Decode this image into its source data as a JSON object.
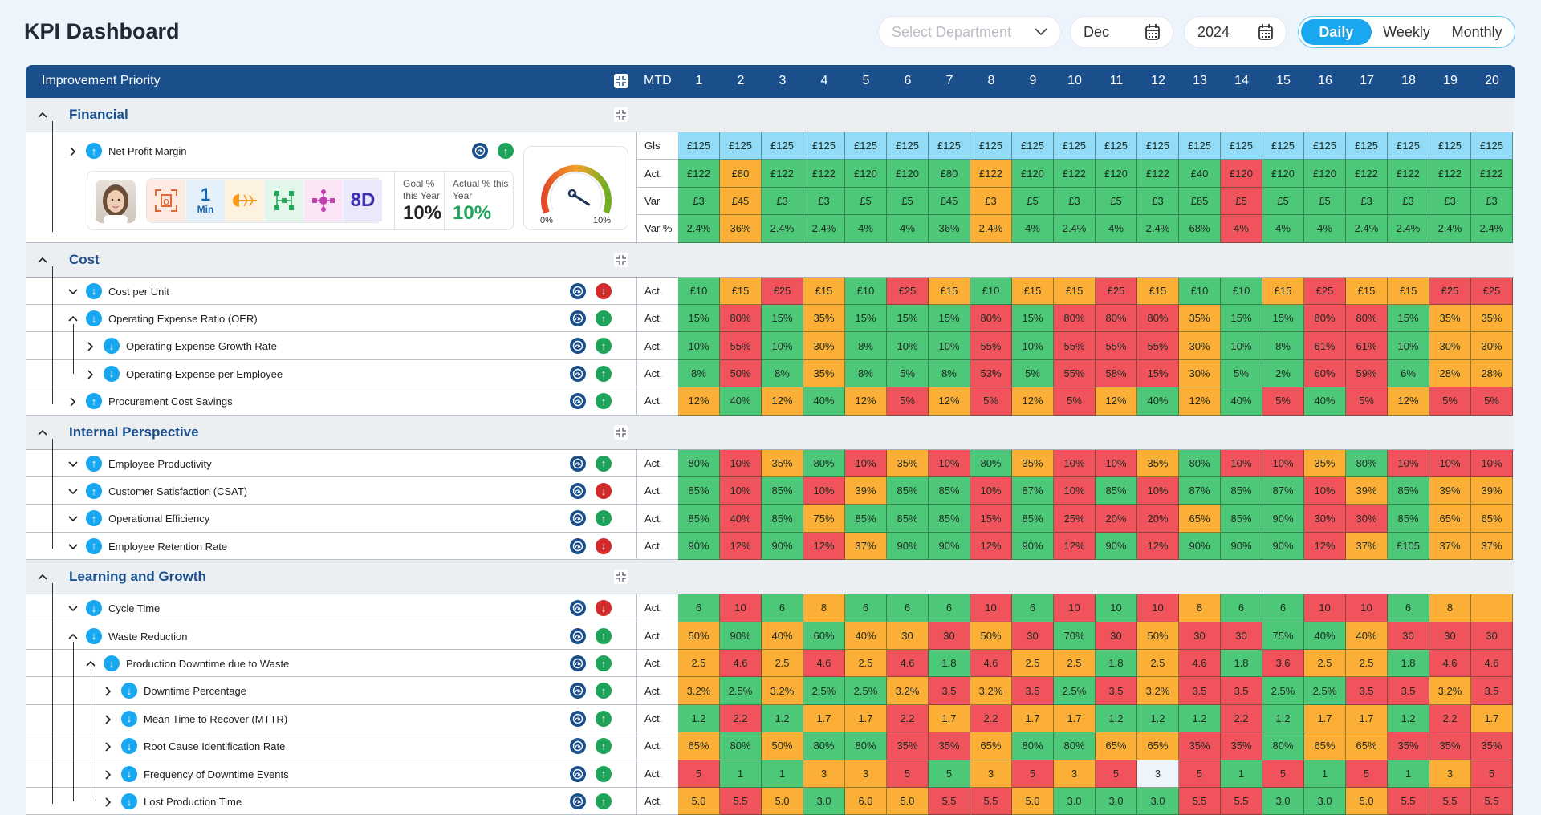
{
  "header": {
    "title": "KPI Dashboard",
    "department_placeholder": "Select Department",
    "month": "Dec",
    "year": "2024",
    "views": [
      "Daily",
      "Weekly",
      "Monthly"
    ],
    "active_view": "Daily"
  },
  "table": {
    "priority_label": "Improvement Priority",
    "mtd_label": "MTD",
    "days": [
      "1",
      "2",
      "3",
      "4",
      "5",
      "6",
      "7",
      "8",
      "9",
      "10",
      "11",
      "12",
      "13",
      "14",
      "15",
      "16",
      "17",
      "18",
      "19",
      "20"
    ]
  },
  "colors": {
    "g": "#4dc878",
    "o": "#fbaf36",
    "r": "#f0535c",
    "b": "#92dcf8",
    "brand": "#1a4f8b",
    "accent": "#19a7ef"
  },
  "financial_card": {
    "tools": [
      "Q",
      "1",
      "Min",
      "fishbone",
      "network",
      "process",
      "8D"
    ],
    "goal_label": "Goal % this Year",
    "goal_value": "10%",
    "actual_label": "Actual % this Year",
    "actual_value": "10%",
    "gauge": {
      "min_label": "0%",
      "max_label": "10%",
      "value": 10,
      "max": 10
    }
  },
  "sections": [
    {
      "title": "Financial",
      "rows": [
        {
          "name": "Net Profit Margin",
          "level": 0,
          "expander": "collapsed",
          "direction": "up",
          "trend": "up",
          "card": true,
          "metrics": [
            {
              "label": "Gls",
              "values": [
                "£125",
                "£125",
                "£125",
                "£125",
                "£125",
                "£125",
                "£125",
                "£125",
                "£125",
                "£125",
                "£125",
                "£125",
                "£125",
                "£125",
                "£125",
                "£125",
                "£125",
                "£125",
                "£125",
                "£125"
              ],
              "colors": "bbbbbbbbbbbbbbbbbbbb"
            },
            {
              "label": "Act.",
              "values": [
                "£122",
                "£80",
                "£122",
                "£122",
                "£120",
                "£120",
                "£80",
                "£122",
                "£120",
                "£122",
                "£120",
                "£122",
                "£40",
                "£120",
                "£120",
                "£120",
                "£122",
                "£122",
                "£122",
                "£122"
              ],
              "colors": "gogggggogggggrgggggg"
            },
            {
              "label": "Var",
              "values": [
                "£3",
                "£45",
                "£3",
                "£3",
                "£5",
                "£5",
                "£45",
                "£3",
                "£5",
                "£3",
                "£5",
                "£3",
                "£85",
                "£5",
                "£5",
                "£5",
                "£3",
                "£3",
                "£3",
                "£3"
              ],
              "colors": "gogggggogggggrgggggg"
            },
            {
              "label": "Var %",
              "values": [
                "2.4%",
                "36%",
                "2.4%",
                "2.4%",
                "4%",
                "4%",
                "36%",
                "2.4%",
                "4%",
                "2.4%",
                "4%",
                "2.4%",
                "68%",
                "4%",
                "4%",
                "4%",
                "2.4%",
                "2.4%",
                "2.4%",
                "2.4%"
              ],
              "colors": "gogggggogggggrgggggg"
            }
          ]
        }
      ]
    },
    {
      "title": "Cost",
      "rows": [
        {
          "name": "Cost per Unit",
          "level": 0,
          "expander": "expanded-down",
          "direction": "down",
          "trend": "down",
          "metrics": [
            {
              "label": "Act.",
              "values": [
                "£10",
                "£15",
                "£25",
                "£15",
                "£10",
                "£25",
                "£15",
                "£10",
                "£15",
                "£15",
                "£25",
                "£15",
                "£10",
                "£10",
                "£15",
                "£25",
                "£15",
                "£15",
                "£25",
                "£25"
              ],
              "colors": "gorogrogooroggoroorr"
            }
          ]
        },
        {
          "name": "Operating Expense Ratio (OER)",
          "level": 0,
          "expander": "expanded",
          "direction": "down",
          "trend": "up",
          "metrics": [
            {
              "label": "Act.",
              "values": [
                "15%",
                "80%",
                "15%",
                "35%",
                "15%",
                "15%",
                "15%",
                "80%",
                "15%",
                "80%",
                "80%",
                "80%",
                "35%",
                "15%",
                "15%",
                "80%",
                "80%",
                "15%",
                "35%",
                "35%"
              ],
              "colors": "grgogggrgrrroggrrgoo"
            }
          ]
        },
        {
          "name": "Operating Expense Growth Rate",
          "level": 1,
          "expander": "collapsed",
          "direction": "down",
          "trend": "up",
          "metrics": [
            {
              "label": "Act.",
              "values": [
                "10%",
                "55%",
                "10%",
                "30%",
                "8%",
                "10%",
                "10%",
                "55%",
                "10%",
                "55%",
                "55%",
                "55%",
                "30%",
                "10%",
                "8%",
                "61%",
                "61%",
                "10%",
                "30%",
                "30%"
              ],
              "colors": "grgogggrgrrroggrrgoo"
            }
          ]
        },
        {
          "name": "Operating Expense per Employee",
          "level": 1,
          "expander": "collapsed",
          "direction": "down",
          "trend": "up",
          "metrics": [
            {
              "label": "Act.",
              "values": [
                "8%",
                "50%",
                "8%",
                "35%",
                "8%",
                "5%",
                "8%",
                "53%",
                "5%",
                "55%",
                "58%",
                "15%",
                "30%",
                "5%",
                "2%",
                "60%",
                "59%",
                "6%",
                "28%",
                "28%"
              ],
              "colors": "grgogggrgrrroggrrgoo"
            }
          ]
        },
        {
          "name": "Procurement Cost Savings",
          "level": 0,
          "expander": "collapsed",
          "direction": "up",
          "trend": "up",
          "metrics": [
            {
              "label": "Act.",
              "values": [
                "12%",
                "40%",
                "12%",
                "40%",
                "12%",
                "5%",
                "12%",
                "5%",
                "12%",
                "5%",
                "12%",
                "40%",
                "12%",
                "40%",
                "5%",
                "40%",
                "5%",
                "12%",
                "5%",
                "5%"
              ],
              "colors": "ogogorororogogrgrorr"
            }
          ]
        }
      ]
    },
    {
      "title": "Internal Perspective",
      "rows": [
        {
          "name": "Employee Productivity",
          "level": 0,
          "expander": "expanded-down",
          "direction": "up",
          "trend": "up",
          "metrics": [
            {
              "label": "Act.",
              "values": [
                "80%",
                "10%",
                "35%",
                "80%",
                "10%",
                "35%",
                "10%",
                "80%",
                "35%",
                "10%",
                "10%",
                "35%",
                "80%",
                "10%",
                "10%",
                "35%",
                "80%",
                "10%",
                "10%",
                "10%"
              ],
              "colors": "grogrorgorrogrrogrrr"
            }
          ]
        },
        {
          "name": "Customer Satisfaction (CSAT)",
          "level": 0,
          "expander": "expanded-down",
          "direction": "up",
          "trend": "down",
          "metrics": [
            {
              "label": "Act.",
              "values": [
                "85%",
                "10%",
                "85%",
                "10%",
                "39%",
                "85%",
                "85%",
                "10%",
                "87%",
                "10%",
                "85%",
                "10%",
                "87%",
                "85%",
                "87%",
                "10%",
                "39%",
                "85%",
                "39%",
                "39%"
              ],
              "colors": "grgroggrgrgrgggrogoo"
            }
          ]
        },
        {
          "name": "Operational Efficiency",
          "level": 0,
          "expander": "expanded-down",
          "direction": "up",
          "trend": "up",
          "metrics": [
            {
              "label": "Act.",
              "values": [
                "85%",
                "40%",
                "85%",
                "75%",
                "85%",
                "85%",
                "85%",
                "15%",
                "85%",
                "25%",
                "20%",
                "20%",
                "65%",
                "85%",
                "90%",
                "30%",
                "30%",
                "85%",
                "65%",
                "65%"
              ],
              "colors": "grgogggrgrrroggrrgoo"
            }
          ]
        },
        {
          "name": "Employee Retention Rate",
          "level": 0,
          "expander": "expanded-down",
          "direction": "up",
          "trend": "down",
          "metrics": [
            {
              "label": "Act.",
              "values": [
                "90%",
                "12%",
                "90%",
                "12%",
                "37%",
                "90%",
                "90%",
                "12%",
                "90%",
                "12%",
                "90%",
                "12%",
                "90%",
                "90%",
                "90%",
                "12%",
                "37%",
                "£105",
                "37%",
                "37%"
              ],
              "colors": "grgroggrgrgrgggrogoo"
            }
          ]
        }
      ]
    },
    {
      "title": "Learning and Growth",
      "rows": [
        {
          "name": "Cycle Time",
          "level": 0,
          "expander": "expanded-down",
          "direction": "down",
          "trend": "down",
          "metrics": [
            {
              "label": "Act.",
              "values": [
                "6",
                "10",
                "6",
                "8",
                "6",
                "6",
                "6",
                "10",
                "6",
                "10",
                "10",
                "10",
                "8",
                "6",
                "6",
                "10",
                "10",
                "6",
                "8",
                ""
              ],
              "colors": "grgogggrgrgroggrrgoo"
            }
          ]
        },
        {
          "name": "Waste Reduction",
          "level": 0,
          "expander": "expanded",
          "direction": "down",
          "trend": "up",
          "metrics": [
            {
              "label": "Act.",
              "values": [
                "50%",
                "90%",
                "40%",
                "60%",
                "40%",
                "30",
                "30",
                "50%",
                "30",
                "70%",
                "30",
                "50%",
                "30",
                "30",
                "75%",
                "40%",
                "40%",
                "30",
                "30",
                "30"
              ],
              "colors": "ogogoororgrorrggorrr"
            }
          ]
        },
        {
          "name": "Production Downtime due to Waste",
          "level": 1,
          "expander": "expanded",
          "direction": "down",
          "trend": "up",
          "metrics": [
            {
              "label": "Act.",
              "values": [
                "2.5",
                "4.6",
                "2.5",
                "4.6",
                "2.5",
                "4.6",
                "1.8",
                "4.6",
                "2.5",
                "2.5",
                "1.8",
                "2.5",
                "4.6",
                "1.8",
                "3.6",
                "2.5",
                "2.5",
                "1.8",
                "4.6",
                "4.6"
              ],
              "colors": "orororgroogorgroogrr"
            }
          ]
        },
        {
          "name": "Downtime Percentage",
          "level": 2,
          "expander": "collapsed",
          "direction": "down",
          "trend": "up",
          "metrics": [
            {
              "label": "Act.",
              "values": [
                "3.2%",
                "2.5%",
                "3.2%",
                "2.5%",
                "2.5%",
                "3.2%",
                "3.5",
                "3.2%",
                "3.5",
                "2.5%",
                "3.5",
                "3.2%",
                "3.5",
                "3.5",
                "2.5%",
                "2.5%",
                "3.5",
                "3.5",
                "3.2%",
                "3.5"
              ],
              "colors": "ogoggororgrorrggrror"
            }
          ]
        },
        {
          "name": "Mean Time to Recover (MTTR)",
          "level": 2,
          "expander": "collapsed",
          "direction": "down",
          "trend": "up",
          "metrics": [
            {
              "label": "Act.",
              "values": [
                "1.2",
                "2.2",
                "1.2",
                "1.7",
                "1.7",
                "2.2",
                "1.7",
                "2.2",
                "1.7",
                "1.7",
                "1.2",
                "1.2",
                "1.2",
                "2.2",
                "1.2",
                "1.7",
                "1.7",
                "1.2",
                "2.2",
                "1.7"
              ],
              "colors": "grgoororoogggrgoogro"
            }
          ]
        },
        {
          "name": "Root Cause Identification Rate",
          "level": 2,
          "expander": "collapsed",
          "direction": "down",
          "trend": "up",
          "metrics": [
            {
              "label": "Act.",
              "values": [
                "65%",
                "80%",
                "50%",
                "80%",
                "80%",
                "35%",
                "35%",
                "65%",
                "80%",
                "80%",
                "65%",
                "65%",
                "35%",
                "35%",
                "80%",
                "65%",
                "65%",
                "35%",
                "35%",
                "35%"
              ],
              "colors": "ogoggrroggoorrgoorrr"
            }
          ]
        },
        {
          "name": "Frequency of Downtime Events",
          "level": 2,
          "expander": "collapsed",
          "direction": "down",
          "trend": "up",
          "metrics": [
            {
              "label": "Act.",
              "values": [
                "5",
                "1",
                "1",
                "3",
                "3",
                "5",
                "5",
                "3",
                "5",
                "3",
                "5",
                "3",
                "5",
                "1",
                "5",
                "1",
                "5",
                "1",
                "3",
                "5"
              ],
              "colors": "rggoorgororergrgrgor"
            }
          ]
        },
        {
          "name": "Lost Production Time",
          "level": 2,
          "expander": "collapsed",
          "direction": "down",
          "trend": "up",
          "metrics": [
            {
              "label": "Act.",
              "values": [
                "5.0",
                "5.5",
                "5.0",
                "3.0",
                "6.0",
                "5.0",
                "5.5",
                "5.5",
                "5.0",
                "3.0",
                "3.0",
                "3.0",
                "5.5",
                "5.5",
                "3.0",
                "3.0",
                "5.0",
                "5.5",
                "5.5",
                "5.5"
              ],
              "colors": "orogoorrogggrrggorrr"
            }
          ]
        }
      ]
    }
  ]
}
